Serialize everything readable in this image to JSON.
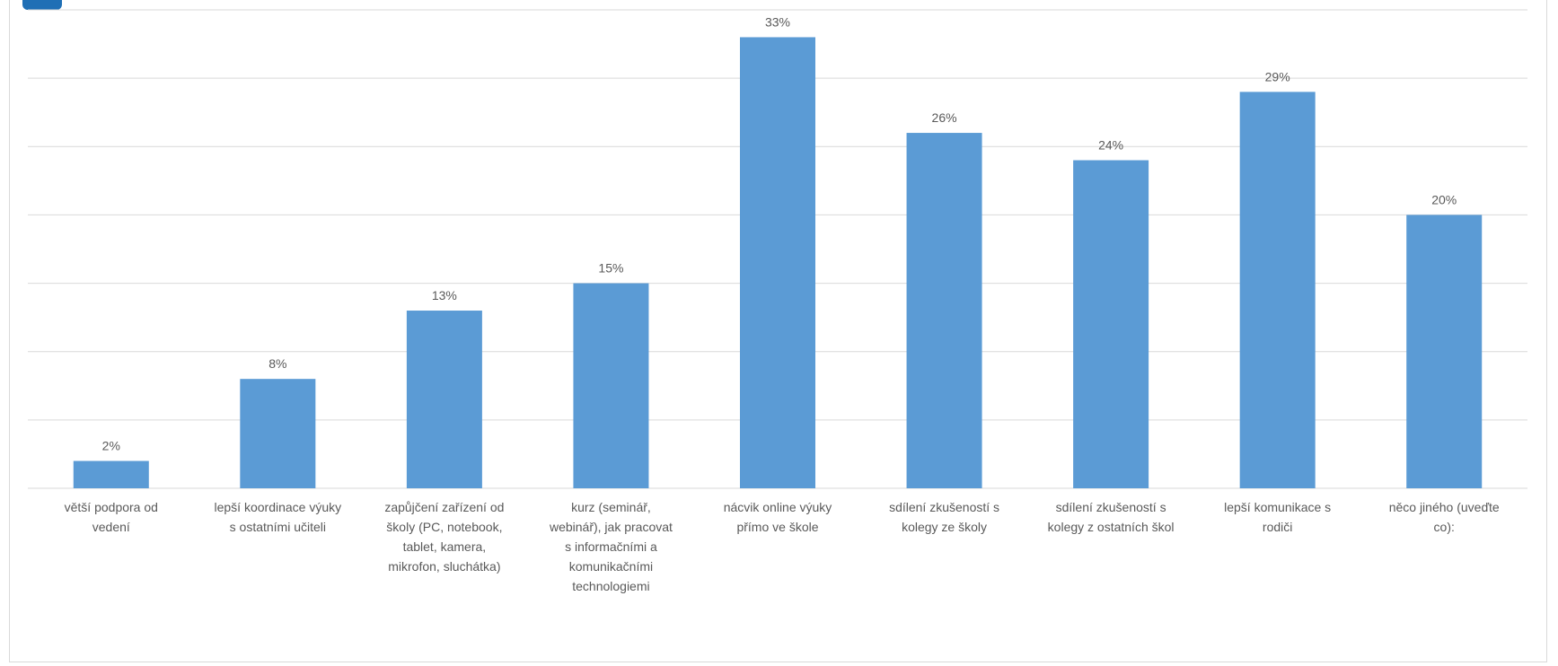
{
  "chart_data": {
    "type": "bar",
    "categories": [
      [
        "větší podpora od",
        "vedení"
      ],
      [
        "lepší koordinace výuky",
        "s ostatními učiteli"
      ],
      [
        "zapůjčení zařízení od",
        "školy (PC, notebook,",
        "tablet, kamera,",
        "mikrofon, sluchátka)"
      ],
      [
        "kurz (seminář,",
        "webinář), jak pracovat",
        "s informačními a",
        "komunikačními",
        "technologiemi"
      ],
      [
        "nácvik online výuky",
        "přímo ve škole"
      ],
      [
        "sdílení zkušeností s",
        "kolegy ze školy"
      ],
      [
        "sdílení zkušeností s",
        "kolegy z ostatních škol"
      ],
      [
        "lepší komunikace s",
        "rodiči"
      ],
      [
        "něco jiného (uveďte",
        "co):"
      ]
    ],
    "values": [
      2,
      8,
      13,
      15,
      33,
      26,
      24,
      29,
      20
    ],
    "data_labels": [
      "2%",
      "8%",
      "13%",
      "15%",
      "33%",
      "26%",
      "24%",
      "29%",
      "20%"
    ],
    "ylim": [
      0,
      35
    ],
    "gridline_step": 5,
    "grid": true,
    "bar_color": "#5B9BD5",
    "gridline_color": "#d9d9d9",
    "label_color": "#595959"
  },
  "logo": {
    "accent_color": "#1f6fb5"
  }
}
